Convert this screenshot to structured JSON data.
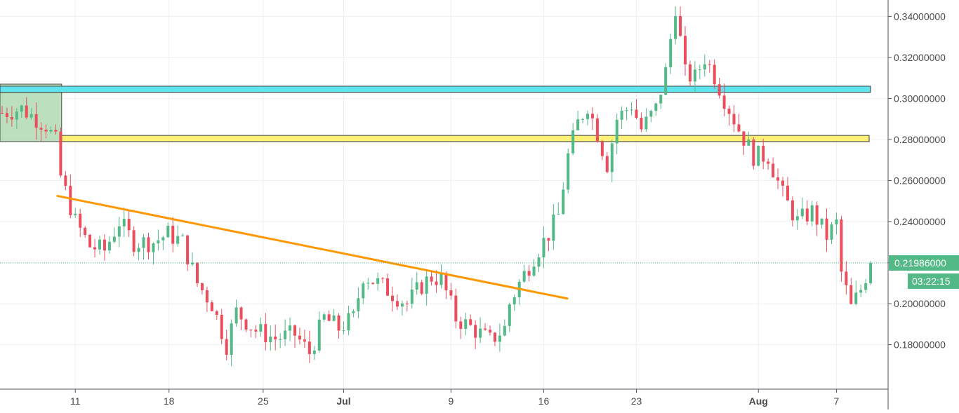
{
  "chart_data": {
    "type": "candlestick",
    "symbol": "",
    "y_axis": {
      "position": "right",
      "range": [
        0.158,
        0.348
      ],
      "ticks": [
        0.18,
        0.2,
        0.22,
        0.24,
        0.26,
        0.28,
        0.3,
        0.32,
        0.34
      ],
      "tick_labels": [
        "0.18000000",
        "0.20000000",
        "0.22000000",
        "0.24000000",
        "0.26000000",
        "0.28000000",
        "0.30000000",
        "0.32000000",
        "0.34000000"
      ]
    },
    "x_axis": {
      "tick_labels": [
        "11",
        "18",
        "25",
        "Jul",
        "9",
        "16",
        "23",
        "Aug",
        "7"
      ],
      "bold_labels": [
        "Jul",
        "Aug"
      ]
    },
    "grid": true,
    "current_price": {
      "value": 0.21986,
      "label": "0.21986000",
      "countdown": "03:22:15",
      "color": "#53b987"
    },
    "colors": {
      "up": "#53b987",
      "down": "#eb4d5c",
      "trendline": "#ff9800",
      "resistance_zone": "#5fe3ee",
      "support_zone": "#fff176",
      "consolidation_box": "#a5d6a7"
    },
    "annotations": {
      "resistance_zone": [
        0.303,
        0.306
      ],
      "support_zone": [
        0.279,
        0.282
      ],
      "trendline": [
        [
          0.0,
          0.2525
        ],
        [
          0.0,
          0.2025
        ]
      ]
    },
    "series_path": [
      [
        0,
        0.293
      ],
      [
        4,
        0.295
      ],
      [
        9,
        0.287
      ],
      [
        11,
        0.279
      ],
      [
        12,
        0.262
      ],
      [
        15,
        0.24
      ],
      [
        18,
        0.228
      ],
      [
        21,
        0.226
      ],
      [
        24,
        0.24
      ],
      [
        27,
        0.23
      ],
      [
        31,
        0.23
      ],
      [
        34,
        0.234
      ],
      [
        37,
        0.23
      ],
      [
        40,
        0.21
      ],
      [
        43,
        0.2
      ],
      [
        46,
        0.18
      ],
      [
        48,
        0.196
      ],
      [
        52,
        0.187
      ],
      [
        56,
        0.183
      ],
      [
        60,
        0.185
      ],
      [
        63,
        0.176
      ],
      [
        66,
        0.193
      ],
      [
        69,
        0.188
      ],
      [
        72,
        0.193
      ],
      [
        74,
        0.214
      ],
      [
        77,
        0.21
      ],
      [
        80,
        0.205
      ],
      [
        83,
        0.2
      ],
      [
        86,
        0.209
      ],
      [
        88,
        0.213
      ],
      [
        90,
        0.212
      ],
      [
        93,
        0.193
      ],
      [
        97,
        0.187
      ],
      [
        100,
        0.182
      ],
      [
        103,
        0.188
      ],
      [
        104,
        0.2
      ],
      [
        106,
        0.21
      ],
      [
        109,
        0.223
      ],
      [
        112,
        0.234
      ],
      [
        114,
        0.243
      ],
      [
        116,
        0.272
      ],
      [
        118,
        0.288
      ],
      [
        120,
        0.297
      ],
      [
        122,
        0.283
      ],
      [
        124,
        0.268
      ],
      [
        126,
        0.29
      ],
      [
        129,
        0.297
      ],
      [
        131,
        0.285
      ],
      [
        134,
        0.295
      ],
      [
        136,
        0.313
      ],
      [
        138,
        0.345
      ],
      [
        140,
        0.312
      ],
      [
        142,
        0.31
      ],
      [
        144,
        0.32
      ],
      [
        146,
        0.311
      ],
      [
        148,
        0.3
      ],
      [
        151,
        0.285
      ],
      [
        154,
        0.272
      ],
      [
        157,
        0.272
      ],
      [
        160,
        0.253
      ],
      [
        163,
        0.24
      ],
      [
        166,
        0.245
      ],
      [
        169,
        0.233
      ],
      [
        171,
        0.239
      ],
      [
        172,
        0.215
      ],
      [
        174,
        0.198
      ],
      [
        176,
        0.207
      ],
      [
        178,
        0.2199
      ]
    ]
  }
}
